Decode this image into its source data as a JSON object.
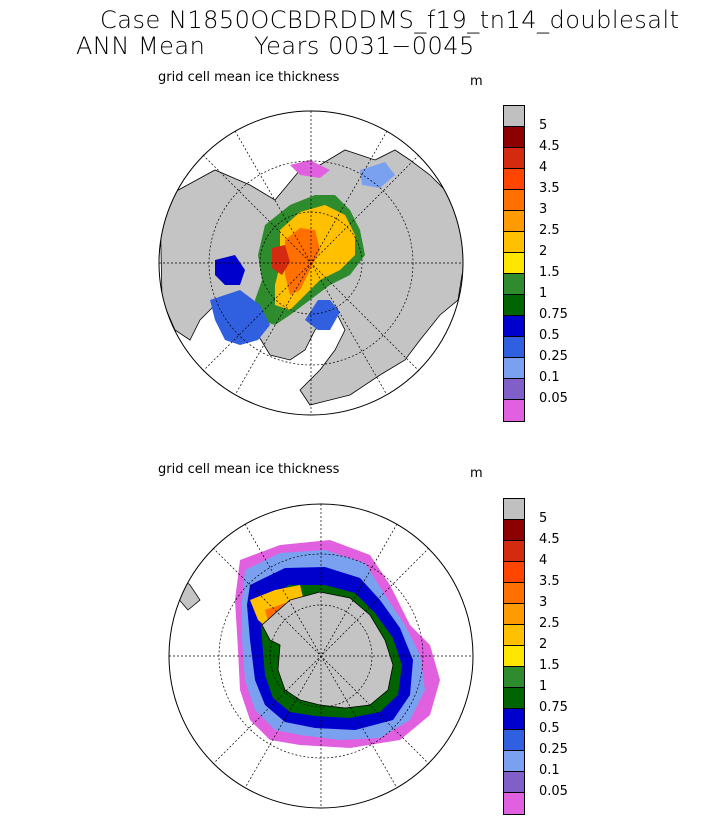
{
  "title": {
    "line1": "Case N1850OCBDRDDMS_f19_tn14_doublesalt",
    "line2": "ANN Mean      Years 0031−0045"
  },
  "panels": [
    {
      "id": "north",
      "subtitle": "grid cell mean ice thickness",
      "unit": "m"
    },
    {
      "id": "south",
      "subtitle": "grid cell mean ice thickness",
      "unit": "m"
    }
  ],
  "colorbar": {
    "labels": [
      "5",
      "4.5",
      "4",
      "3.5",
      "3",
      "2.5",
      "2",
      "1.5",
      "1",
      "0.75",
      "0.5",
      "0.25",
      "0.1",
      "0.05"
    ],
    "colors": [
      "#c0c0c0",
      "#8b0000",
      "#d42a10",
      "#ff4500",
      "#ff7000",
      "#ff9a00",
      "#ffc000",
      "#ffe600",
      "#2e8b2e",
      "#006400",
      "#0000cd",
      "#3060e0",
      "#7aa0f0",
      "#8060c8",
      "#e060e0"
    ]
  }
}
